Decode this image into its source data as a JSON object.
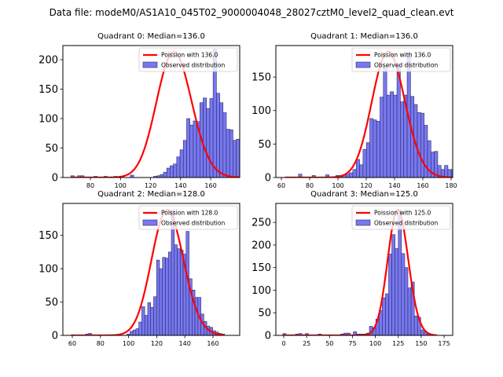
{
  "suptitle": "Data file: modeM0/AS1A10_045T02_9000004048_28027cztM0_level2_quad_clean.evt",
  "colors": {
    "bar_fill": "#7878f0",
    "bar_edge": "#2a2a6a",
    "poisson_line": "#ff0000"
  },
  "chart_data": [
    {
      "type": "bar",
      "title": "Quadrant 0: Median=136.0",
      "xlabel": "",
      "ylabel": "",
      "xlim": [
        61.7,
        179.3
      ],
      "ylim": [
        0,
        224
      ],
      "xticks": [
        80,
        100,
        120,
        140,
        160
      ],
      "yticks": [
        0,
        50,
        100,
        150,
        200
      ],
      "legend_position": "top-right",
      "legend": [
        "Poission with 136.0",
        "Observed distribution"
      ],
      "poisson_mean": 136.0,
      "poisson_peak": 213,
      "bin_width": 2.2,
      "bin_start": 67,
      "values": [
        3,
        0,
        3,
        3,
        0,
        0,
        0,
        2,
        0,
        0,
        2,
        0,
        0,
        2,
        0,
        0,
        0,
        0,
        4,
        0,
        0,
        0,
        0,
        0,
        0,
        2,
        3,
        5,
        9,
        16,
        20,
        23,
        35,
        47,
        63,
        100,
        89,
        96,
        95,
        127,
        135,
        117,
        134,
        218,
        143,
        127,
        110,
        82,
        81,
        63,
        65,
        55,
        34,
        19,
        16,
        12,
        10,
        7,
        4,
        2
      ],
      "bins_to_x_note": "values are counts per bin starting at bin_start with bin_width"
    },
    {
      "type": "bar",
      "title": "Quadrant 1: Median=136.0",
      "xlabel": "",
      "ylabel": "",
      "xlim": [
        56.1,
        181.1
      ],
      "ylim": [
        0,
        197
      ],
      "xticks": [
        60,
        80,
        100,
        120,
        140,
        160,
        180
      ],
      "yticks": [
        0,
        50,
        100,
        150
      ],
      "legend_position": "top-right",
      "legend": [
        "Poission with 136.0",
        "Observed distribution"
      ],
      "poisson_mean": 136.0,
      "poisson_peak": 188,
      "bin_width": 2.4,
      "bin_start": 62.5,
      "values": [
        0,
        0,
        0,
        0,
        5,
        0,
        0,
        0,
        3,
        0,
        0,
        0,
        4,
        0,
        0,
        3,
        3,
        4,
        5,
        7,
        12,
        27,
        19,
        42,
        52,
        88,
        86,
        84,
        120,
        165,
        123,
        128,
        123,
        167,
        113,
        123,
        185,
        121,
        109,
        97,
        96,
        78,
        55,
        38,
        39,
        18,
        12,
        18,
        12,
        12
      ],
      "bins_to_x_note": "values are counts per bin starting at bin_start with bin_width"
    },
    {
      "type": "bar",
      "title": "Quadrant 2: Median=128.0",
      "xlabel": "",
      "ylabel": "",
      "xlim": [
        53.3,
        179.0
      ],
      "ylim": [
        0,
        198
      ],
      "xticks": [
        60,
        80,
        100,
        120,
        140,
        160
      ],
      "yticks": [
        0,
        50,
        100,
        150
      ],
      "legend_position": "top-right",
      "legend": [
        "Poission with 128.0",
        "Observed distribution"
      ],
      "poisson_mean": 128.0,
      "poisson_peak": 188,
      "bin_width": 2.1,
      "bin_start": 59,
      "values": [
        0,
        0,
        0,
        0,
        0,
        2,
        3,
        0,
        0,
        0,
        0,
        0,
        0,
        0,
        0,
        0,
        0,
        0,
        0,
        2,
        6,
        8,
        10,
        20,
        43,
        30,
        49,
        42,
        58,
        113,
        100,
        117,
        116,
        125,
        188,
        136,
        130,
        128,
        122,
        156,
        85,
        68,
        57,
        57,
        32,
        21,
        14,
        12,
        7,
        5,
        3,
        2
      ],
      "bins_to_x_note": "values are counts per bin starting at bin_start with bin_width"
    },
    {
      "type": "bar",
      "title": "Quadrant 3: Median=125.0",
      "xlabel": "",
      "ylabel": "",
      "xlim": [
        -8.6,
        184.4
      ],
      "ylim": [
        0,
        292
      ],
      "xticks": [
        0,
        25,
        50,
        75,
        100,
        125,
        150,
        175
      ],
      "yticks": [
        0,
        50,
        100,
        150,
        200,
        250
      ],
      "legend_position": "top-right",
      "legend": [
        "Poission with 125.0",
        "Observed distribution"
      ],
      "poisson_mean": 125.0,
      "poisson_peak": 278,
      "bin_width": 3.5,
      "bin_start": -1,
      "values": [
        4,
        0,
        0,
        0,
        3,
        4,
        0,
        4,
        0,
        0,
        0,
        3,
        0,
        0,
        0,
        0,
        0,
        0,
        3,
        5,
        5,
        0,
        8,
        3,
        3,
        3,
        5,
        20,
        17,
        36,
        55,
        83,
        92,
        180,
        223,
        192,
        278,
        181,
        150,
        105,
        118,
        43,
        40,
        12,
        7,
        3,
        0,
        0
      ],
      "bins_to_x_note": "values are counts per bin starting at bin_start with bin_width"
    }
  ]
}
